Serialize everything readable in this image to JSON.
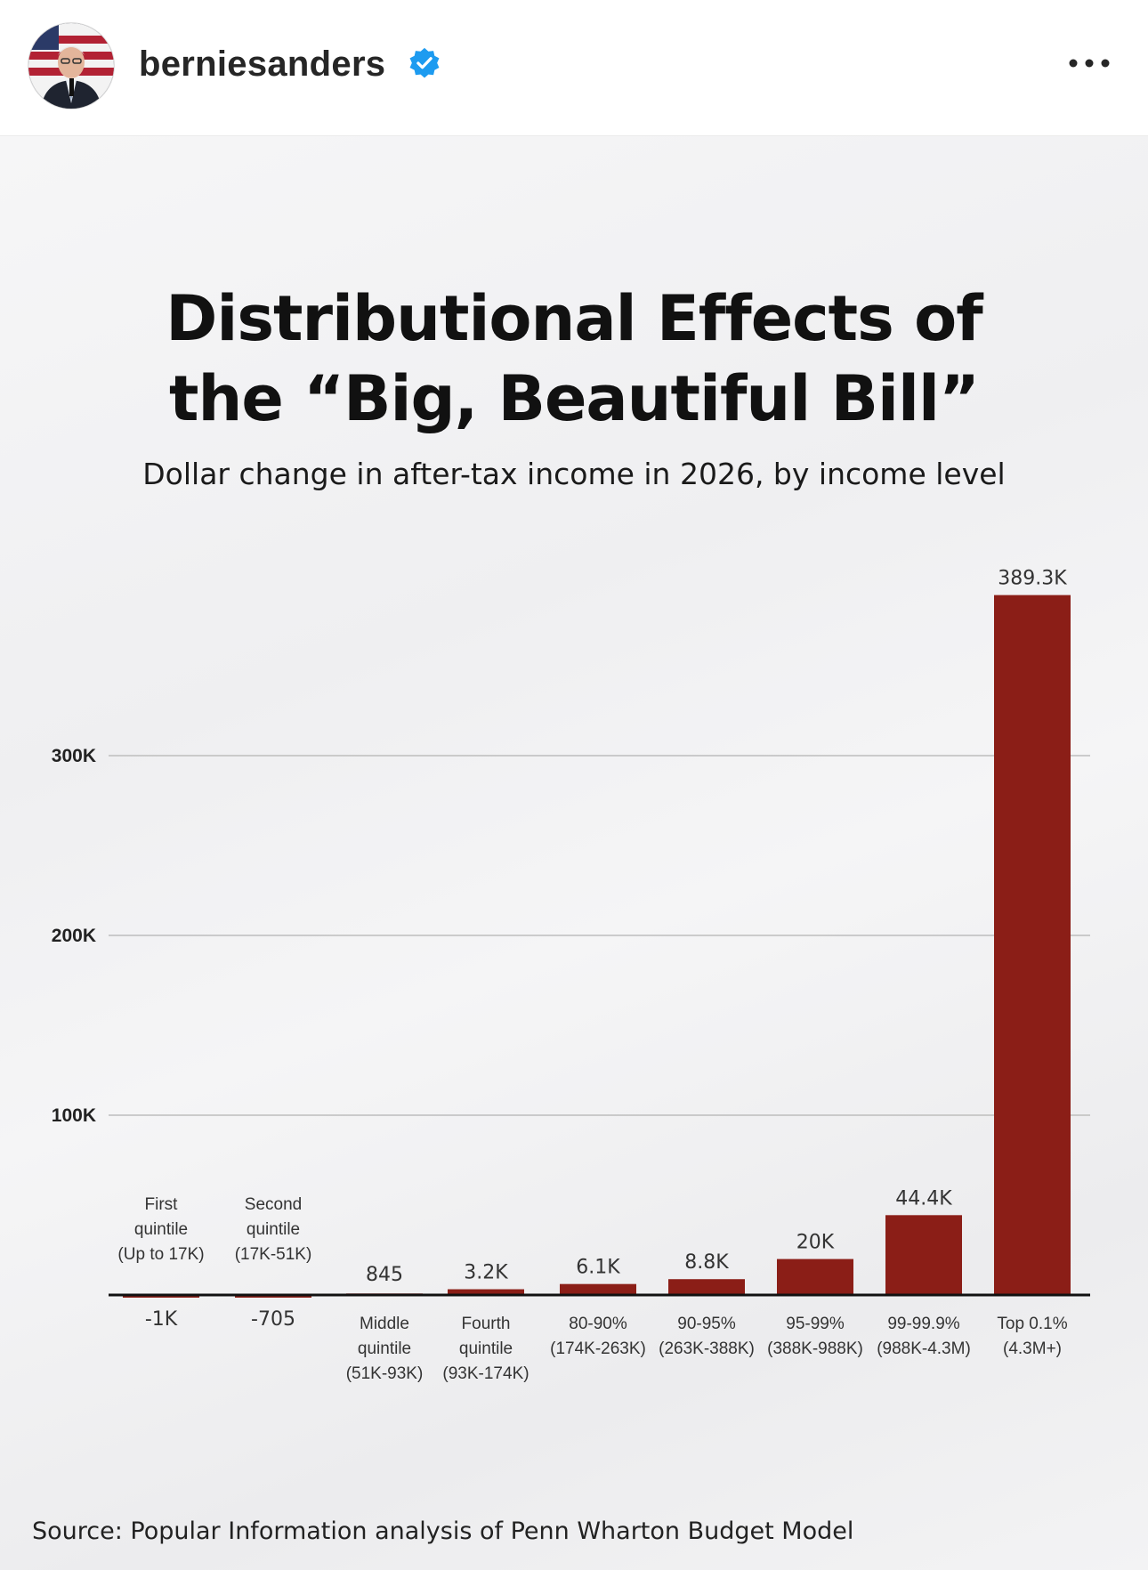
{
  "header": {
    "username": "berniesanders",
    "verified_icon": "verified-badge-icon",
    "more_icon": "more-options-icon",
    "accent_color": "#1d9bf0"
  },
  "post": {
    "title_line1": "Distributional Effects of",
    "title_line2": "the “Big, Beautiful Bill”",
    "subtitle": "Dollar change in after-tax income in 2026, by income level",
    "source": "Source: Popular Information analysis of Penn Wharton Budget Model"
  },
  "chart_data": {
    "type": "bar",
    "title": "Distributional Effects of the “Big, Beautiful Bill”",
    "subtitle": "Dollar change in after-tax income in 2026, by income level",
    "ylim": [
      -10000,
      400000
    ],
    "yticks": [
      100000,
      200000,
      300000
    ],
    "ytick_labels": [
      "100K",
      "200K",
      "300K"
    ],
    "grid": true,
    "bar_color": "#8b1e17",
    "categories": [
      [
        "First",
        "quintile",
        "(Up to 17K)"
      ],
      [
        "Second",
        "quintile",
        "(17K-51K)"
      ],
      [
        "Middle",
        "quintile",
        "(51K-93K)"
      ],
      [
        "Fourth",
        "quintile",
        "(93K-174K)"
      ],
      [
        "80-90%",
        "(174K-263K)"
      ],
      [
        "90-95%",
        "(263K-388K)"
      ],
      [
        "95-99%",
        "(388K-988K)"
      ],
      [
        "99-99.9%",
        "(988K-4.3M)"
      ],
      [
        "Top 0.1%",
        "(4.3M+)"
      ]
    ],
    "values": [
      -1000,
      -705,
      845,
      3200,
      6100,
      8800,
      20000,
      44400,
      389300
    ],
    "value_labels": [
      "-1K",
      "-705",
      "845",
      "3.2K",
      "6.1K",
      "8.8K",
      "20K",
      "44.4K",
      "389.3K"
    ]
  }
}
